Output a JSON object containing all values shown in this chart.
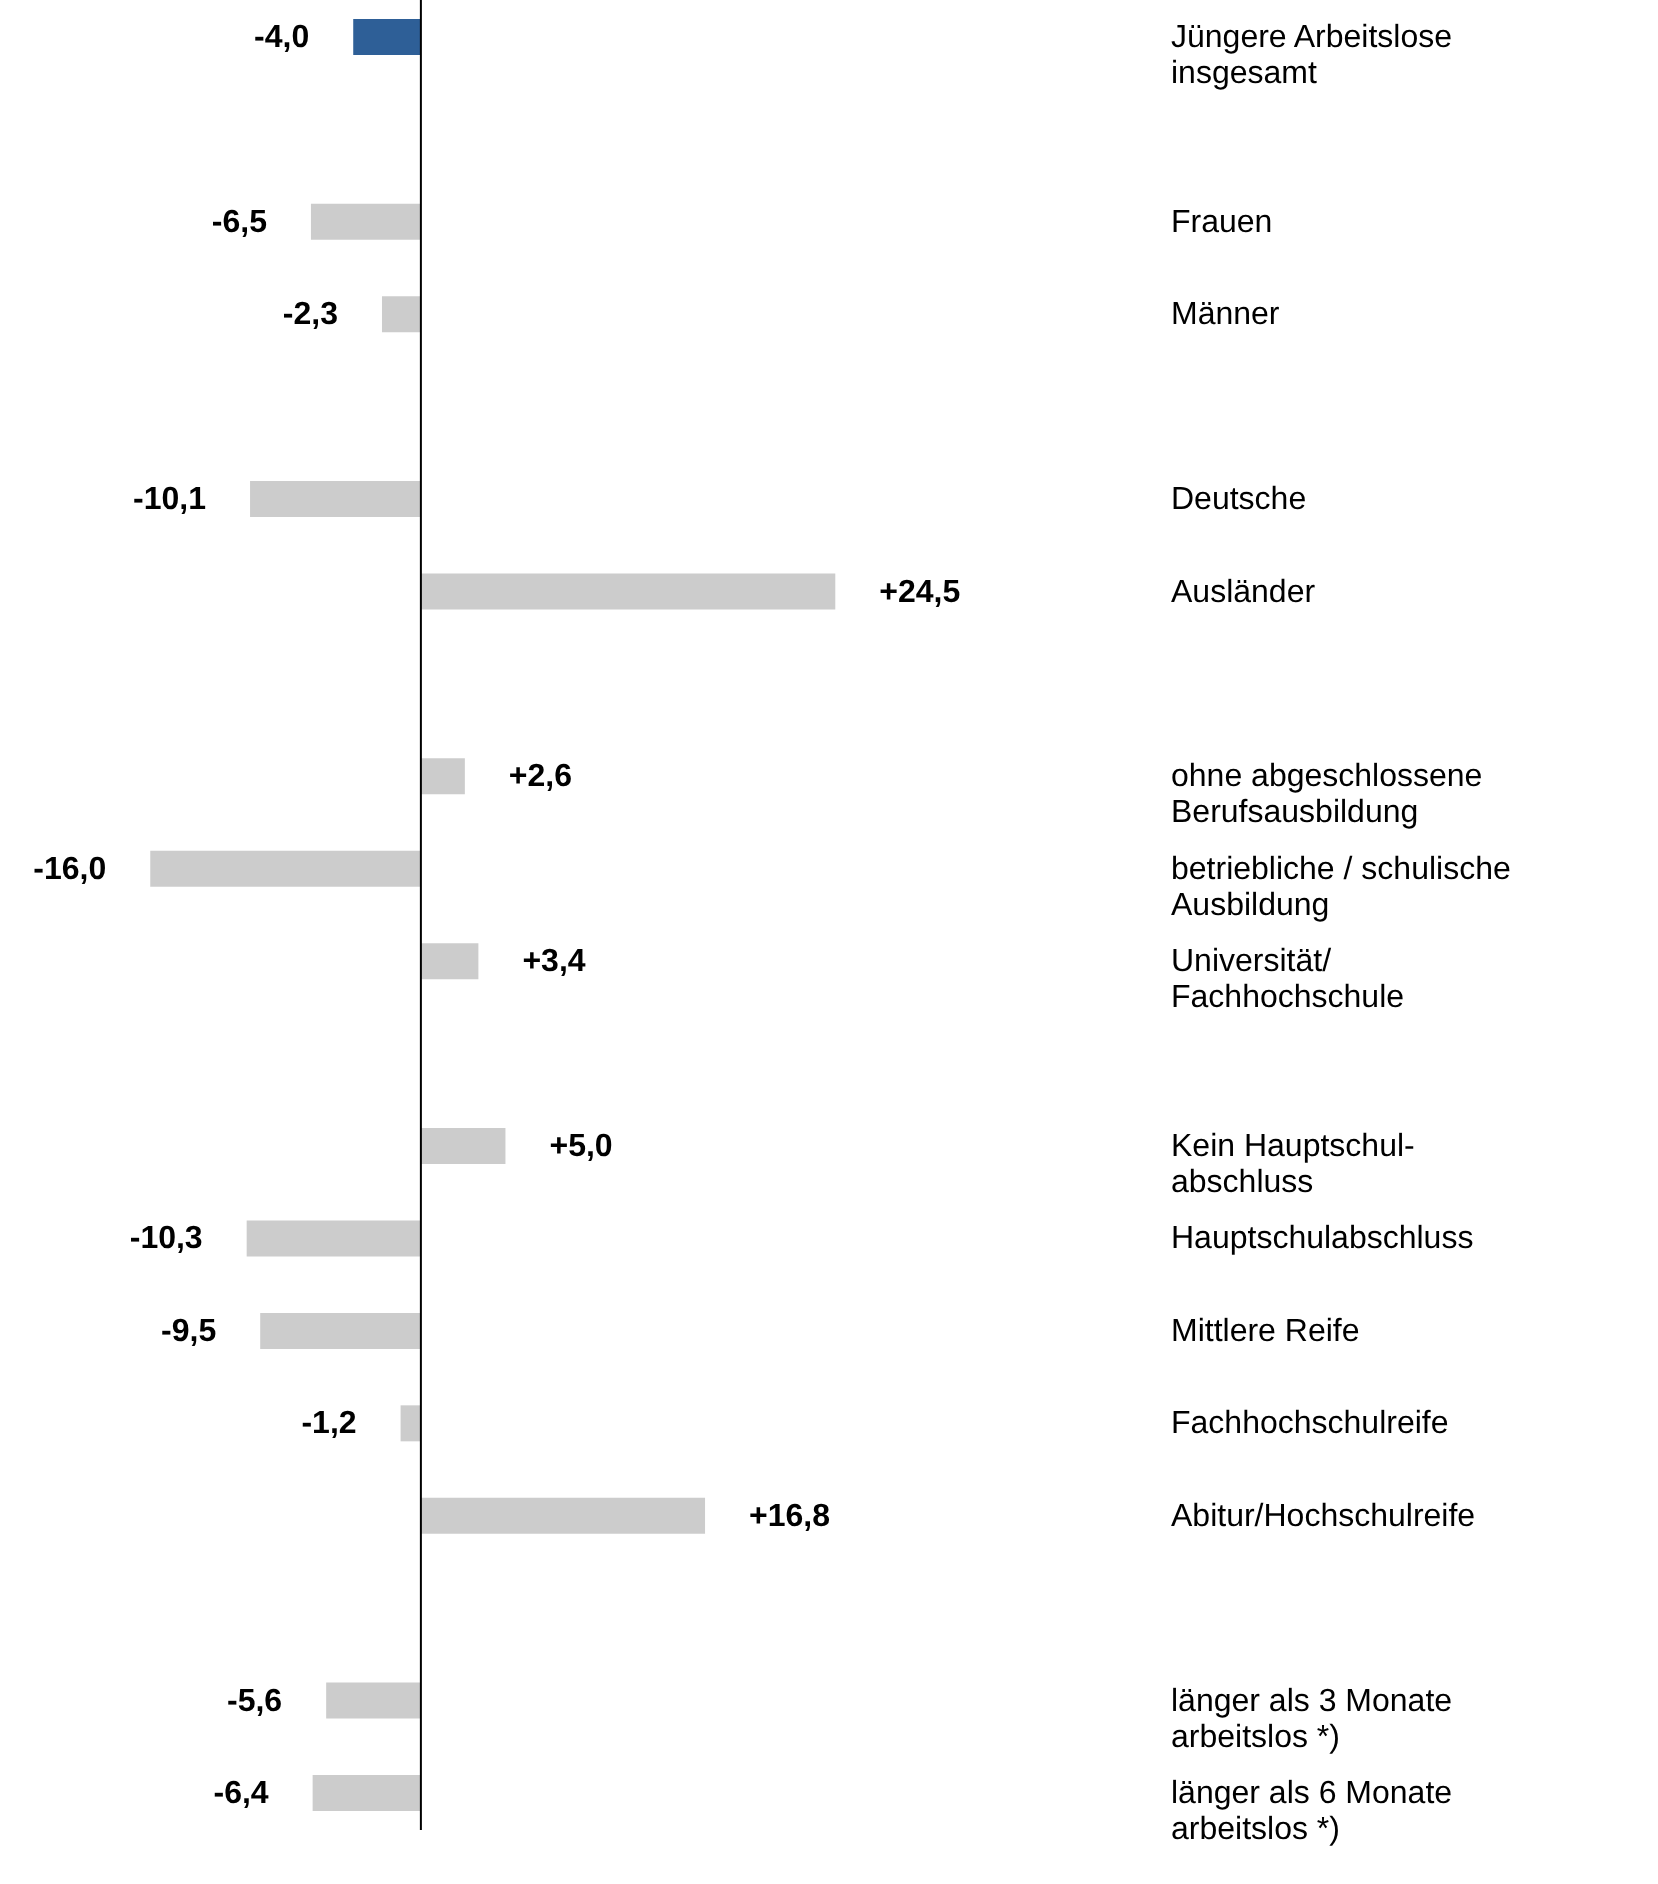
{
  "chart_data": {
    "type": "bar",
    "orientation": "horizontal",
    "categories": [
      "Jüngere Arbeitslose\ninsgesamt",
      null,
      "Frauen",
      "Männer",
      null,
      "Deutsche",
      "Ausländer",
      null,
      "ohne abgeschlossene\nBerufsausbildung",
      "betriebliche / schulische\nAusbildung",
      "Universität/\nFachhochschule",
      null,
      "Kein Hauptschul-\nabschluss",
      "Hauptschulabschluss",
      "Mittlere Reife",
      "Fachhochschulreife",
      "Abitur/Hochschulreife",
      null,
      "länger als 3 Monate\narbeitslos *)",
      "länger als 6 Monate\narbeitslos *)"
    ],
    "values": [
      -4.0,
      null,
      -6.5,
      -2.3,
      null,
      -10.1,
      24.5,
      null,
      2.6,
      -16.0,
      3.4,
      null,
      5.0,
      -10.3,
      -9.5,
      -1.2,
      16.8,
      null,
      -5.6,
      -6.4
    ],
    "value_labels": [
      "-4,0",
      null,
      "-6,5",
      "-2,3",
      null,
      "-10,1",
      "+24,5",
      null,
      "+2,6",
      "-16,0",
      "+3,4",
      null,
      "+5,0",
      "-10,3",
      "-9,5",
      "-1,2",
      "+16,8",
      null,
      "-5,6",
      "-6,4"
    ],
    "colors": [
      "#2e5f97",
      null,
      "#cccccc",
      "#cccccc",
      null,
      "#cccccc",
      "#cccccc",
      null,
      "#cccccc",
      "#cccccc",
      "#cccccc",
      null,
      "#cccccc",
      "#cccccc",
      "#cccccc",
      "#cccccc",
      "#cccccc",
      null,
      "#cccccc",
      "#cccccc"
    ]
  }
}
